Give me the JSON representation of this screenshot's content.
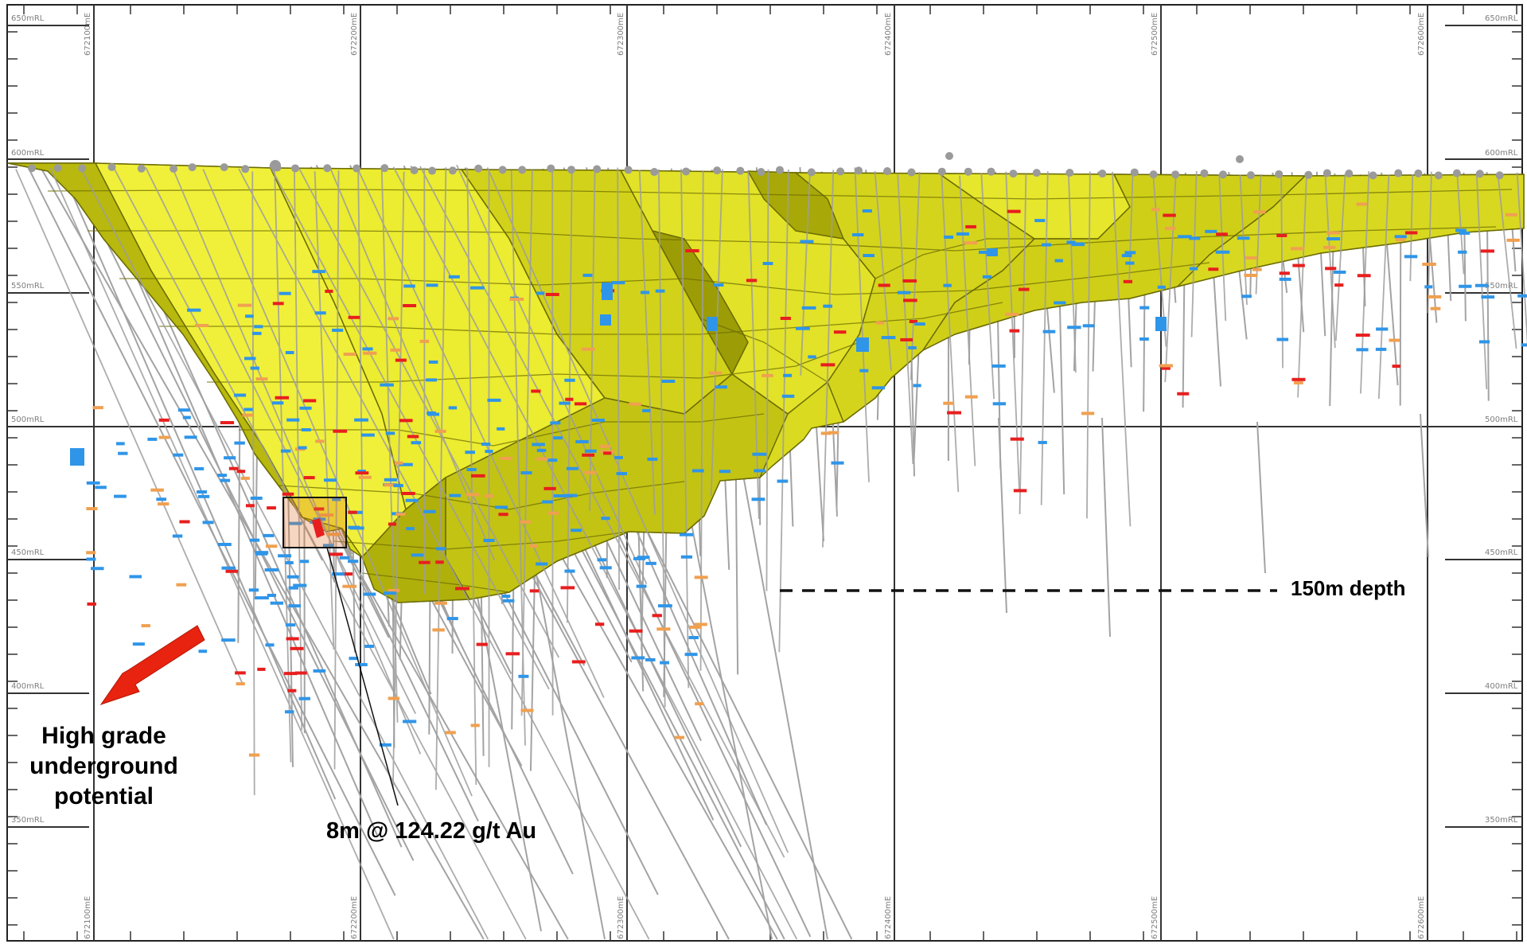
{
  "annotations": {
    "underground_line1": "High grade",
    "underground_line2": "underground",
    "underground_line3": "potential",
    "depth": "150m depth",
    "intercept": "8m @ 124.22 g/t Au"
  },
  "rl_labels": [
    "650mRL",
    "600mRL",
    "550mRL",
    "500mRL",
    "450mRL",
    "400mRL",
    "350mRL"
  ],
  "easting_labels": [
    "672100mE",
    "672200mE",
    "672300mE",
    "672400mE",
    "672500mE",
    "672600mE"
  ],
  "colors": {
    "pit_light": "#e5e52a",
    "pit_mid": "#c8c812",
    "pit_dark": "#8f8f06",
    "drillhole": "#a3a3a3",
    "assay_low": "#2f95e8",
    "assay_mid": "#f0a050",
    "assay_high": "#e81e1e",
    "arrow": "#e8230f",
    "grid": "#3a3a3a"
  }
}
